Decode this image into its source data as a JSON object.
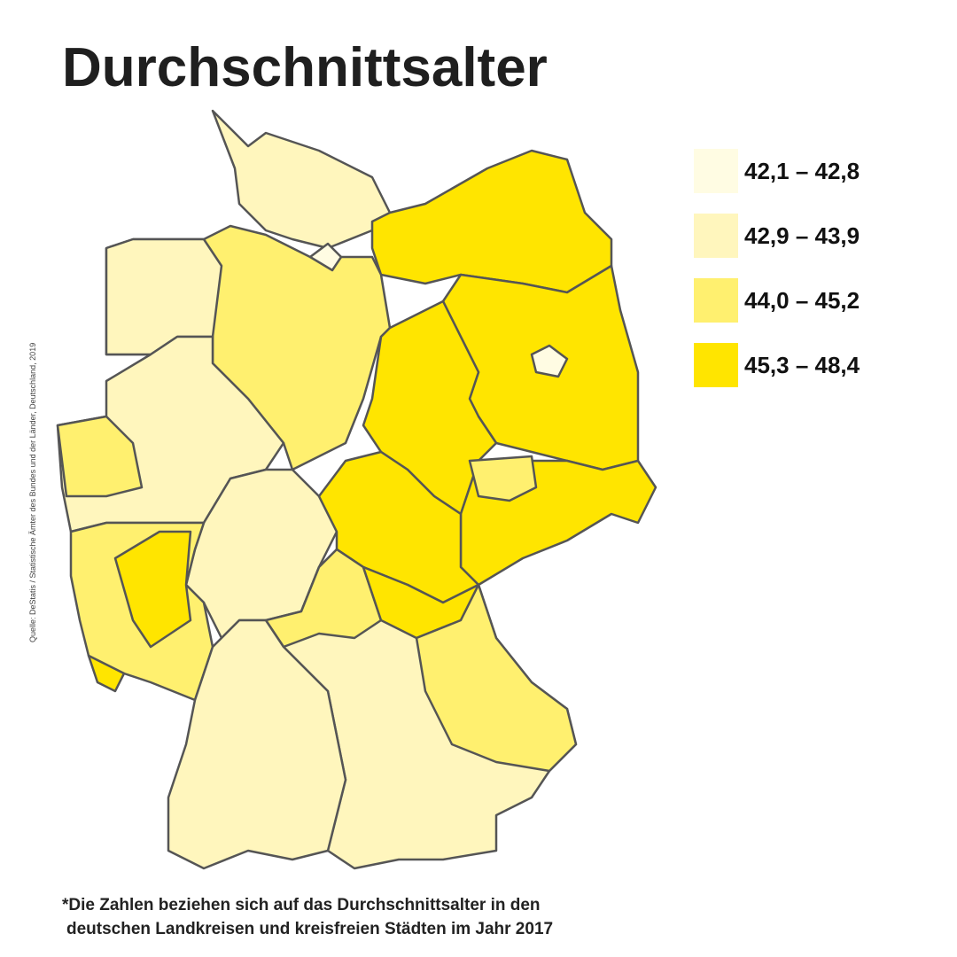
{
  "header": {
    "title": "Durchschnittsalter"
  },
  "legend": {
    "items": [
      {
        "label": "42,1 – 42,8",
        "color": "#fffce3"
      },
      {
        "label": "42,9 – 43,9",
        "color": "#fff6bd"
      },
      {
        "label": "44,0 – 45,2",
        "color": "#fff06f"
      },
      {
        "label": "45,3 – 48,4",
        "color": "#ffe500"
      }
    ]
  },
  "source": "Quelle: DeStatis / Statistische Ämter des Bundes und der Länder, Deutschland, 2019",
  "footnote": [
    "*Die Zahlen beziehen sich auf das Durchschnittsalter in den",
    "deutschen Landkreisen und kreisfreien Städten im Jahr 2017"
  ]
}
